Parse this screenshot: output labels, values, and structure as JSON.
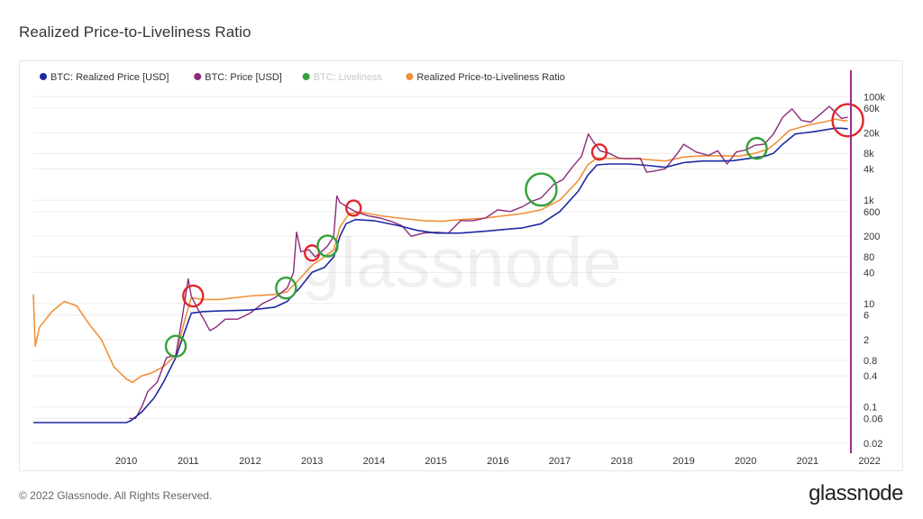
{
  "page": {
    "title": "Realized Price-to-Liveliness Ratio",
    "footer": "© 2022 Glassnode. All Rights Reserved.",
    "brand": "glassnode",
    "watermark": "glassnode"
  },
  "colors": {
    "realized_price": "#1c2aa0",
    "price": "#8c2a7a",
    "liveliness": "#35a13a",
    "ratio": "#f0913c",
    "liveliness_legend_text": "#c8c8c8",
    "marker_red": "#e0262b",
    "marker_green": "#35a13a",
    "cursor": "#9a2c8f"
  },
  "chart_data": {
    "type": "line",
    "title": "Realized Price-to-Liveliness Ratio",
    "xlabel": "",
    "ylabel": "",
    "yscale": "log",
    "grid": true,
    "legend_position": "top-left",
    "xlim": [
      2009.0,
      2022.2
    ],
    "ylim": [
      0.015,
      200000
    ],
    "x_ticks": [
      "2010",
      "2011",
      "2012",
      "2013",
      "2014",
      "2015",
      "2016",
      "2017",
      "2018",
      "2019",
      "2020",
      "2021",
      "2022"
    ],
    "y_ticks": [
      {
        "label": "100k",
        "value": 100000
      },
      {
        "label": "60k",
        "value": 60000
      },
      {
        "label": "20k",
        "value": 20000
      },
      {
        "label": "8k",
        "value": 8000
      },
      {
        "label": "4k",
        "value": 4000
      },
      {
        "label": "1k",
        "value": 1000
      },
      {
        "label": "600",
        "value": 600
      },
      {
        "label": "200",
        "value": 200
      },
      {
        "label": "80",
        "value": 80
      },
      {
        "label": "40",
        "value": 40
      },
      {
        "label": "10",
        "value": 10
      },
      {
        "label": "6",
        "value": 6
      },
      {
        "label": "2",
        "value": 2
      },
      {
        "label": "0.8",
        "value": 0.8
      },
      {
        "label": "0.4",
        "value": 0.4
      },
      {
        "label": "0.1",
        "value": 0.1
      },
      {
        "label": "0.06",
        "value": 0.06
      },
      {
        "label": "0.02",
        "value": 0.02
      }
    ],
    "series": [
      {
        "name": "BTC: Realized Price [USD]",
        "key": "realized",
        "points": [
          [
            2009.0,
            0.05
          ],
          [
            2010.5,
            0.05
          ],
          [
            2010.58,
            0.055
          ],
          [
            2010.75,
            0.08
          ],
          [
            2010.95,
            0.15
          ],
          [
            2011.1,
            0.3
          ],
          [
            2011.3,
            0.9
          ],
          [
            2011.45,
            3
          ],
          [
            2011.55,
            6.5
          ],
          [
            2011.75,
            7
          ],
          [
            2012.0,
            7.2
          ],
          [
            2012.5,
            7.5
          ],
          [
            2012.9,
            8.5
          ],
          [
            2013.1,
            11
          ],
          [
            2013.3,
            20
          ],
          [
            2013.5,
            40
          ],
          [
            2013.7,
            50
          ],
          [
            2013.85,
            80
          ],
          [
            2013.95,
            200
          ],
          [
            2014.05,
            350
          ],
          [
            2014.2,
            420
          ],
          [
            2014.5,
            400
          ],
          [
            2014.9,
            320
          ],
          [
            2015.2,
            260
          ],
          [
            2015.5,
            230
          ],
          [
            2015.9,
            230
          ],
          [
            2016.3,
            250
          ],
          [
            2016.6,
            270
          ],
          [
            2016.9,
            290
          ],
          [
            2017.2,
            350
          ],
          [
            2017.5,
            600
          ],
          [
            2017.8,
            1500
          ],
          [
            2017.95,
            3000
          ],
          [
            2018.1,
            4800
          ],
          [
            2018.3,
            5000
          ],
          [
            2018.6,
            5000
          ],
          [
            2018.9,
            4700
          ],
          [
            2019.2,
            4300
          ],
          [
            2019.5,
            5300
          ],
          [
            2019.8,
            5700
          ],
          [
            2020.1,
            5700
          ],
          [
            2020.3,
            5800
          ],
          [
            2020.6,
            6500
          ],
          [
            2020.8,
            7000
          ],
          [
            2020.95,
            8000
          ],
          [
            2021.1,
            12000
          ],
          [
            2021.3,
            19000
          ],
          [
            2021.6,
            21000
          ],
          [
            2021.8,
            23000
          ],
          [
            2021.95,
            24500
          ],
          [
            2022.05,
            24500
          ],
          [
            2022.15,
            23800
          ]
        ]
      },
      {
        "name": "BTC: Price [USD]",
        "key": "price",
        "points": [
          [
            2010.55,
            0.06
          ],
          [
            2010.65,
            0.06
          ],
          [
            2010.75,
            0.1
          ],
          [
            2010.85,
            0.2
          ],
          [
            2011.0,
            0.3
          ],
          [
            2011.15,
            0.9
          ],
          [
            2011.3,
            1
          ],
          [
            2011.4,
            5
          ],
          [
            2011.45,
            12
          ],
          [
            2011.5,
            30
          ],
          [
            2011.55,
            14
          ],
          [
            2011.65,
            8
          ],
          [
            2011.75,
            5
          ],
          [
            2011.85,
            3
          ],
          [
            2011.95,
            3.5
          ],
          [
            2012.1,
            5
          ],
          [
            2012.3,
            5
          ],
          [
            2012.5,
            6.5
          ],
          [
            2012.7,
            10
          ],
          [
            2012.9,
            13
          ],
          [
            2013.1,
            20
          ],
          [
            2013.2,
            40
          ],
          [
            2013.25,
            240
          ],
          [
            2013.32,
            100
          ],
          [
            2013.45,
            110
          ],
          [
            2013.55,
            80
          ],
          [
            2013.65,
            100
          ],
          [
            2013.75,
            130
          ],
          [
            2013.85,
            200
          ],
          [
            2013.9,
            1200
          ],
          [
            2013.95,
            900
          ],
          [
            2014.1,
            700
          ],
          [
            2014.2,
            600
          ],
          [
            2014.4,
            500
          ],
          [
            2014.6,
            450
          ],
          [
            2014.8,
            380
          ],
          [
            2014.95,
            320
          ],
          [
            2015.1,
            200
          ],
          [
            2015.3,
            230
          ],
          [
            2015.5,
            240
          ],
          [
            2015.7,
            230
          ],
          [
            2015.9,
            400
          ],
          [
            2016.1,
            400
          ],
          [
            2016.3,
            450
          ],
          [
            2016.5,
            650
          ],
          [
            2016.7,
            600
          ],
          [
            2016.9,
            750
          ],
          [
            2017.05,
            950
          ],
          [
            2017.2,
            1100
          ],
          [
            2017.4,
            2000
          ],
          [
            2017.55,
            2500
          ],
          [
            2017.7,
            4300
          ],
          [
            2017.85,
            7000
          ],
          [
            2017.96,
            19000
          ],
          [
            2018.05,
            13000
          ],
          [
            2018.15,
            9000
          ],
          [
            2018.3,
            8000
          ],
          [
            2018.45,
            6500
          ],
          [
            2018.6,
            6300
          ],
          [
            2018.8,
            6400
          ],
          [
            2018.9,
            3500
          ],
          [
            2019.0,
            3600
          ],
          [
            2019.2,
            4000
          ],
          [
            2019.4,
            8000
          ],
          [
            2019.5,
            12000
          ],
          [
            2019.7,
            8500
          ],
          [
            2019.9,
            7300
          ],
          [
            2020.05,
            9000
          ],
          [
            2020.2,
            5000
          ],
          [
            2020.35,
            8500
          ],
          [
            2020.5,
            9300
          ],
          [
            2020.65,
            11500
          ],
          [
            2020.8,
            12000
          ],
          [
            2020.95,
            19000
          ],
          [
            2021.1,
            40000
          ],
          [
            2021.25,
            58000
          ],
          [
            2021.4,
            35000
          ],
          [
            2021.55,
            32000
          ],
          [
            2021.7,
            45000
          ],
          [
            2021.85,
            65000
          ],
          [
            2021.97,
            47000
          ],
          [
            2022.05,
            38000
          ],
          [
            2022.15,
            40000
          ]
        ]
      },
      {
        "name": "Realized Price-to-Liveliness Ratio",
        "key": "ratio",
        "points": [
          [
            2009.0,
            15
          ],
          [
            2009.03,
            1.5
          ],
          [
            2009.1,
            3.5
          ],
          [
            2009.3,
            7
          ],
          [
            2009.5,
            11
          ],
          [
            2009.7,
            9
          ],
          [
            2009.9,
            4
          ],
          [
            2010.1,
            2
          ],
          [
            2010.3,
            0.6
          ],
          [
            2010.5,
            0.35
          ],
          [
            2010.6,
            0.3
          ],
          [
            2010.75,
            0.4
          ],
          [
            2010.9,
            0.45
          ],
          [
            2011.1,
            0.6
          ],
          [
            2011.3,
            1
          ],
          [
            2011.45,
            5
          ],
          [
            2011.55,
            13
          ],
          [
            2011.75,
            12
          ],
          [
            2012.0,
            12
          ],
          [
            2012.5,
            14
          ],
          [
            2012.9,
            15
          ],
          [
            2013.1,
            17
          ],
          [
            2013.3,
            30
          ],
          [
            2013.5,
            55
          ],
          [
            2013.7,
            80
          ],
          [
            2013.85,
            110
          ],
          [
            2013.95,
            300
          ],
          [
            2014.1,
            550
          ],
          [
            2014.3,
            580
          ],
          [
            2014.6,
            500
          ],
          [
            2014.9,
            450
          ],
          [
            2015.3,
            400
          ],
          [
            2015.6,
            390
          ],
          [
            2015.9,
            420
          ],
          [
            2016.3,
            450
          ],
          [
            2016.6,
            500
          ],
          [
            2016.9,
            550
          ],
          [
            2017.2,
            650
          ],
          [
            2017.5,
            1000
          ],
          [
            2017.8,
            2400
          ],
          [
            2017.95,
            4800
          ],
          [
            2018.1,
            6500
          ],
          [
            2018.4,
            6400
          ],
          [
            2018.7,
            6400
          ],
          [
            2018.9,
            6100
          ],
          [
            2019.2,
            5700
          ],
          [
            2019.5,
            6800
          ],
          [
            2019.8,
            7200
          ],
          [
            2020.1,
            7200
          ],
          [
            2020.4,
            7100
          ],
          [
            2020.65,
            8000
          ],
          [
            2020.85,
            9500
          ],
          [
            2021.0,
            13000
          ],
          [
            2021.2,
            22000
          ],
          [
            2021.5,
            28000
          ],
          [
            2021.8,
            33000
          ],
          [
            2021.95,
            37000
          ],
          [
            2022.1,
            34000
          ],
          [
            2022.15,
            35000
          ]
        ]
      }
    ],
    "legend": [
      {
        "label": "BTC: Realized Price [USD]",
        "key": "realized",
        "color_key": "realized_price",
        "muted": false
      },
      {
        "label": "BTC: Price [USD]",
        "key": "price",
        "color_key": "price",
        "muted": false
      },
      {
        "label": "BTC: Liveliness",
        "key": "liveliness",
        "color_key": "liveliness",
        "muted": true
      },
      {
        "label": "Realized Price-to-Liveliness Ratio",
        "key": "ratio",
        "color_key": "ratio",
        "muted": false
      }
    ],
    "markers": [
      {
        "kind": "green",
        "x": 2011.3,
        "y": 1.5,
        "size": "sm"
      },
      {
        "kind": "red",
        "x": 2011.58,
        "y": 14,
        "size": "sm"
      },
      {
        "kind": "green",
        "x": 2013.08,
        "y": 20,
        "size": "sm"
      },
      {
        "kind": "red",
        "x": 2013.5,
        "y": 95,
        "size": "xs"
      },
      {
        "kind": "green",
        "x": 2013.75,
        "y": 130,
        "size": "sm"
      },
      {
        "kind": "red",
        "x": 2014.17,
        "y": 700,
        "size": "xs"
      },
      {
        "kind": "green",
        "x": 2017.2,
        "y": 1600,
        "size": "lg"
      },
      {
        "kind": "red",
        "x": 2018.14,
        "y": 8500,
        "size": "xs"
      },
      {
        "kind": "green",
        "x": 2020.68,
        "y": 10000,
        "size": "sm"
      },
      {
        "kind": "red",
        "x": 2022.15,
        "y": 35000,
        "size": "lg"
      }
    ],
    "cursor_x": 2022.2
  }
}
